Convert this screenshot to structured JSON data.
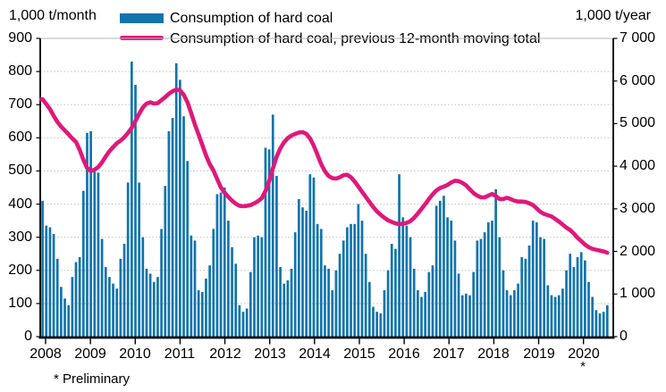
{
  "header": {
    "left_axis_title": "1,000 t/month",
    "right_axis_title": "1,000 t/year",
    "footnote": "* Preliminary",
    "preliminary_marker": "*"
  },
  "legend": [
    {
      "label": "Consumption of hard coal",
      "type": "bar",
      "color": "#1174ab"
    },
    {
      "label": "Consumption of hard coal, previous 12-month moving total",
      "type": "line",
      "color": "#e0187a"
    }
  ],
  "colors": {
    "bar": "#1174ab",
    "line": "#e0187a",
    "grid": "#c8c8c8",
    "grid_top": "#b5b5b5",
    "axis": "#000000",
    "text": "#000000"
  },
  "chart_data": {
    "type": "bar",
    "title": "Consumption of hard coal",
    "x_years": [
      "2008",
      "2009",
      "2010",
      "2011",
      "2012",
      "2013",
      "2014",
      "2015",
      "2016",
      "2017",
      "2018",
      "2019",
      "2020"
    ],
    "x_note": "2020 values are preliminary (*), data Jan 2008 - Sep 2020",
    "left_axis": {
      "title": "1,000 t/month",
      "min": 0,
      "max": 900,
      "step": 100,
      "tick_labels": [
        "0",
        "100",
        "200",
        "300",
        "400",
        "500",
        "600",
        "700",
        "800",
        "900"
      ]
    },
    "right_axis": {
      "title": "1,000 t/year",
      "min": 0,
      "max": 7000,
      "step": 1000,
      "tick_labels": [
        "0",
        "1 000",
        "2 000",
        "3 000",
        "4 000",
        "5 000",
        "6 000",
        "7 000"
      ]
    },
    "grid": "dotted horizontal lines at every 100 (left axis)",
    "legend_position": "top",
    "series": [
      {
        "name": "Consumption of hard coal",
        "type": "bar",
        "axis": "left",
        "unit": "1,000 t/month",
        "monthly_values_by_year": {
          "2008": [
            410,
            335,
            330,
            310,
            235,
            150,
            115,
            95,
            180,
            225,
            240,
            440
          ],
          "2009": [
            615,
            620,
            505,
            495,
            295,
            210,
            180,
            160,
            145,
            235,
            280,
            465
          ],
          "2010": [
            830,
            760,
            465,
            300,
            205,
            190,
            165,
            180,
            325,
            455,
            620,
            660
          ],
          "2011": [
            825,
            775,
            665,
            530,
            305,
            290,
            140,
            135,
            175,
            215,
            325,
            430
          ],
          "2012": [
            435,
            450,
            350,
            270,
            220,
            95,
            75,
            85,
            195,
            300,
            305,
            300
          ],
          "2013": [
            570,
            565,
            670,
            485,
            210,
            160,
            170,
            205,
            315,
            415,
            390,
            380
          ],
          "2014": [
            490,
            480,
            340,
            325,
            215,
            205,
            140,
            200,
            250,
            290,
            330,
            340
          ],
          "2015": [
            340,
            400,
            350,
            250,
            165,
            90,
            75,
            70,
            140,
            200,
            280,
            265
          ],
          "2016": [
            490,
            360,
            335,
            300,
            205,
            140,
            120,
            135,
            195,
            215,
            395,
            410
          ],
          "2017": [
            425,
            360,
            350,
            290,
            190,
            125,
            130,
            125,
            195,
            290,
            295,
            315
          ],
          "2018": [
            345,
            350,
            445,
            300,
            200,
            140,
            125,
            140,
            160,
            240,
            235,
            275
          ],
          "2019": [
            350,
            345,
            300,
            295,
            155,
            125,
            120,
            125,
            145,
            200,
            250,
            210
          ],
          "2020": [
            240,
            255,
            230,
            165,
            120,
            80,
            70,
            75,
            95
          ]
        }
      },
      {
        "name": "Consumption of hard coal, previous 12-month moving total",
        "type": "line",
        "axis": "right",
        "unit": "1,000 t/year",
        "monthly_values_by_year": {
          "2008": [
            5570,
            5460,
            5340,
            5180,
            5040,
            4930,
            4840,
            4750,
            4650,
            4570,
            4380,
            4150
          ],
          "2009": [
            3960,
            3890,
            3920,
            3980,
            4090,
            4230,
            4350,
            4450,
            4540,
            4600,
            4680,
            4780
          ],
          "2010": [
            4900,
            5060,
            5230,
            5380,
            5470,
            5500,
            5470,
            5480,
            5550,
            5620,
            5700,
            5760
          ],
          "2011": [
            5800,
            5780,
            5680,
            5500,
            5250,
            4980,
            4740,
            4500,
            4250,
            4050,
            3900,
            3700
          ],
          "2012": [
            3500,
            3380,
            3280,
            3190,
            3120,
            3070,
            3060,
            3070,
            3090,
            3130,
            3180,
            3250
          ],
          "2013": [
            3420,
            3650,
            3950,
            4220,
            4420,
            4560,
            4660,
            4720,
            4760,
            4790,
            4800,
            4760
          ],
          "2014": [
            4650,
            4480,
            4270,
            4050,
            3880,
            3770,
            3720,
            3710,
            3740,
            3790,
            3800,
            3740
          ],
          "2015": [
            3640,
            3520,
            3400,
            3280,
            3160,
            3040,
            2940,
            2860,
            2790,
            2730,
            2690,
            2660
          ],
          "2016": [
            2640,
            2650,
            2670,
            2710,
            2790,
            2890,
            3000,
            3110,
            3230,
            3340,
            3430,
            3490
          ],
          "2017": [
            3520,
            3560,
            3620,
            3660,
            3650,
            3610,
            3550,
            3460,
            3370,
            3310,
            3270,
            3270
          ],
          "2018": [
            3310,
            3350,
            3300,
            3230,
            3230,
            3260,
            3230,
            3190,
            3170,
            3170,
            3160,
            3130
          ],
          "2019": [
            3090,
            3010,
            2930,
            2880,
            2850,
            2820,
            2760,
            2700,
            2630,
            2560,
            2500,
            2420
          ],
          "2020": [
            2320,
            2240,
            2160,
            2100,
            2060,
            2040,
            2020,
            2000,
            1970
          ]
        }
      }
    ]
  }
}
